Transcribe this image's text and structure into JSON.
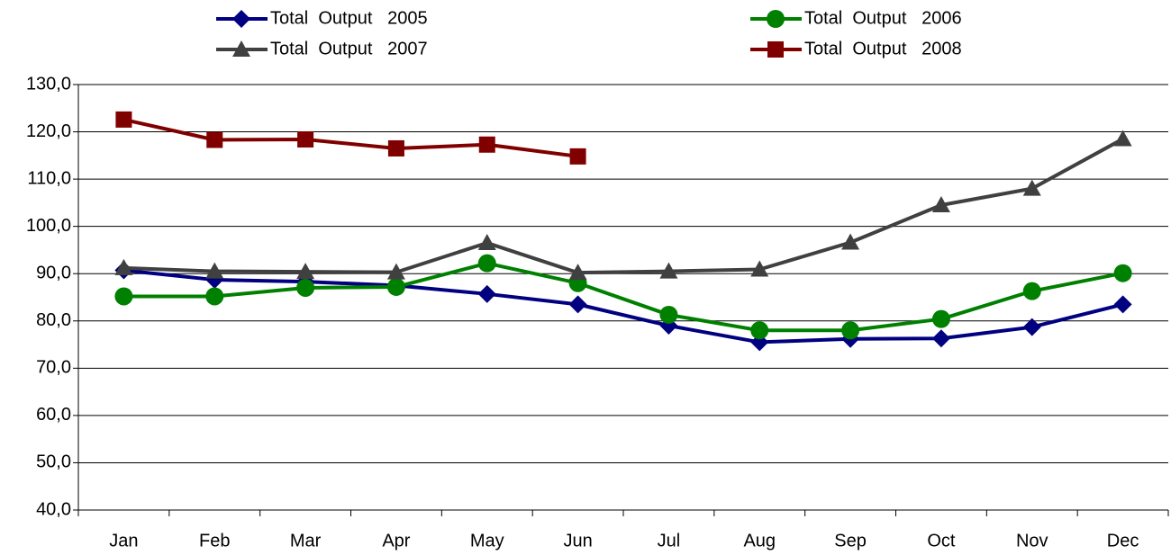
{
  "chart_data": {
    "type": "line",
    "categories": [
      "Jan",
      "Feb",
      "Mar",
      "Apr",
      "May",
      "Jun",
      "Jul",
      "Aug",
      "Sep",
      "Oct",
      "Nov",
      "Dec"
    ],
    "series": [
      {
        "name": "Total  Output   2005",
        "color": "#000080",
        "marker": "diamond",
        "values": [
          90.7,
          88.7,
          88.3,
          87.5,
          85.7,
          83.5,
          79.0,
          75.5,
          76.2,
          76.3,
          78.7,
          83.5
        ]
      },
      {
        "name": "Total  Output   2006",
        "color": "#008000",
        "marker": "circle",
        "values": [
          85.2,
          85.2,
          87.0,
          87.2,
          92.2,
          88.0,
          81.3,
          78.0,
          78.0,
          80.4,
          86.3,
          90.1
        ]
      },
      {
        "name": "Total  Output   2007",
        "color": "#404040",
        "marker": "triangle",
        "values": [
          91.2,
          90.5,
          90.4,
          90.3,
          96.5,
          90.2,
          90.5,
          90.9,
          96.6,
          104.5,
          108.0,
          118.5
        ]
      },
      {
        "name": "Total  Output   2008",
        "color": "#800000",
        "marker": "square",
        "values": [
          122.6,
          118.3,
          118.4,
          116.5,
          117.3,
          114.8,
          null,
          null,
          null,
          null,
          null,
          null
        ]
      }
    ],
    "ylim": [
      40,
      130
    ],
    "yticks": [
      {
        "value": 40,
        "label": "40,0"
      },
      {
        "value": 50,
        "label": "50,0"
      },
      {
        "value": 60,
        "label": "60,0"
      },
      {
        "value": 70,
        "label": "70,0"
      },
      {
        "value": 80,
        "label": "80,0"
      },
      {
        "value": 90,
        "label": "90,0"
      },
      {
        "value": 100,
        "label": "100,0"
      },
      {
        "value": 110,
        "label": "110,0"
      },
      {
        "value": 120,
        "label": "120,0"
      },
      {
        "value": 130,
        "label": "130,0"
      }
    ],
    "grid": true,
    "legend": "top"
  }
}
